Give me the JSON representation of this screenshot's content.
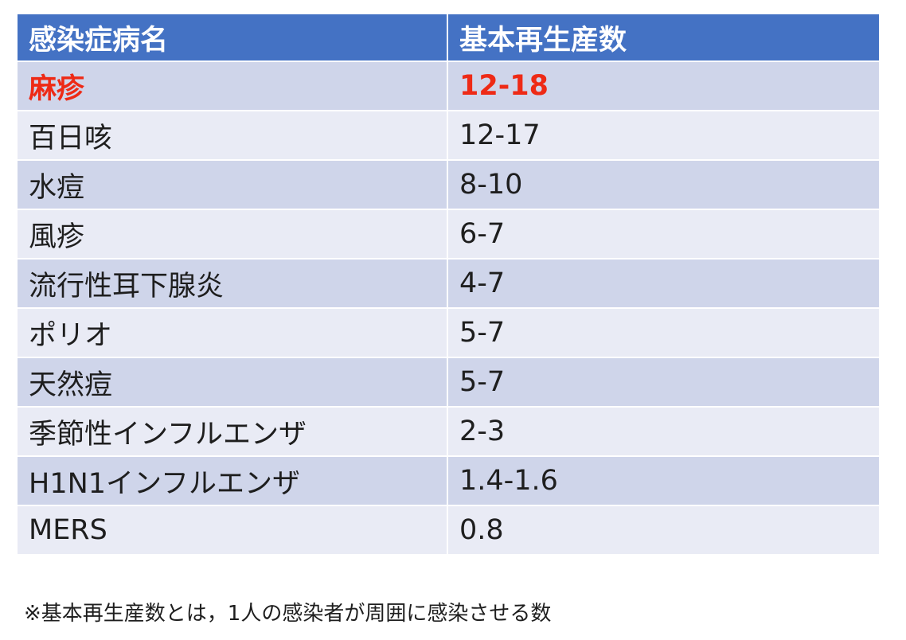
{
  "table": {
    "header": [
      "感染症病名",
      "基本再生産数"
    ],
    "rows": [
      [
        "麻疹",
        "12-18"
      ],
      [
        "百日咳",
        "12-17"
      ],
      [
        "水痘",
        "8-10"
      ],
      [
        "風疹",
        "6-7"
      ],
      [
        "流行性耳下腺炎",
        "4-7"
      ],
      [
        "ポリオ",
        "5-7"
      ],
      [
        "天然痘",
        "5-7"
      ],
      [
        "季節性インフルエンザ",
        "2-3"
      ],
      [
        "H1N1インフルエンザ",
        "1.4-1.6"
      ],
      [
        "MERS",
        "0.8"
      ]
    ]
  },
  "footnote": "※基本再生産数とは，1人の感染者が周囲に感染させる数"
}
